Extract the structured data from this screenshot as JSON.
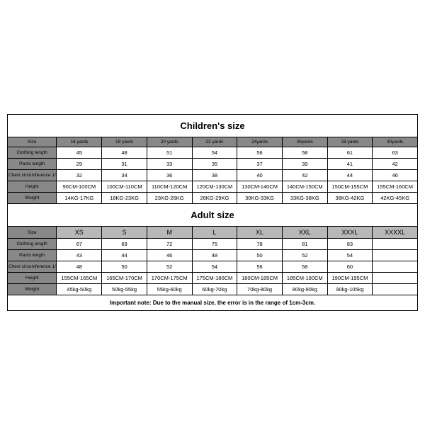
{
  "children": {
    "title": "Children's size",
    "headers": [
      "Size",
      "16 yards",
      "18 yards",
      "20 yards",
      "22 yards",
      "24yards",
      "26yards",
      "28 yards",
      "30yards"
    ],
    "rows": [
      {
        "label": "Clothing length",
        "v": [
          "45",
          "48",
          "51",
          "54",
          "56",
          "58",
          "61",
          "63"
        ]
      },
      {
        "label": "Pants length",
        "v": [
          "29",
          "31",
          "33",
          "35",
          "37",
          "39",
          "41",
          "42"
        ]
      },
      {
        "label": "Chest circumference 1/2",
        "v": [
          "32",
          "34",
          "36",
          "38",
          "40",
          "42",
          "44",
          "46"
        ]
      },
      {
        "label": "Height",
        "v": [
          "90CM-100CM",
          "100CM-110CM",
          "110CM-120CM",
          "120CM-130CM",
          "130CM-140CM",
          "140CM-150CM",
          "150CM-155CM",
          "155CM-160CM"
        ]
      },
      {
        "label": "Weight",
        "v": [
          "14KG-17KG",
          "18KG-23KG",
          "23KG-26KG",
          "26KG-29KG",
          "30KG-33KG",
          "33KG-38KG",
          "38KG-42KG",
          "42KG-45KG"
        ]
      }
    ]
  },
  "adult": {
    "title": "Adult size",
    "headers": [
      "Size",
      "XS",
      "S",
      "M",
      "L",
      "XL",
      "XXL",
      "XXXL",
      "XXXXL"
    ],
    "rows": [
      {
        "label": "Clothing length",
        "v": [
          "67",
          "69",
          "72",
          "75",
          "78",
          "81",
          "83",
          ""
        ]
      },
      {
        "label": "Pants length",
        "v": [
          "43",
          "44",
          "46",
          "48",
          "50",
          "52",
          "54",
          ""
        ]
      },
      {
        "label": "Chest circumference 1/2",
        "v": [
          "48",
          "50",
          "52",
          "54",
          "56",
          "58",
          "60",
          ""
        ]
      },
      {
        "label": "Height",
        "v": [
          "155CM-165CM",
          "165CM-170CM",
          "170CM-175CM",
          "175CM-180CM",
          "180CM-185CM",
          "185CM-190CM",
          "190CM-195CM",
          ""
        ]
      },
      {
        "label": "Weight",
        "v": [
          "45kg-50kg",
          "50kg-55kg",
          "55kg-60kg",
          "60kg-70kg",
          "70kg-80kg",
          "80kg-90kg",
          "90kg-105kg",
          ""
        ]
      }
    ]
  },
  "note": "Important note: Due to the manual size, the error is in the range of 1cm-3cm."
}
